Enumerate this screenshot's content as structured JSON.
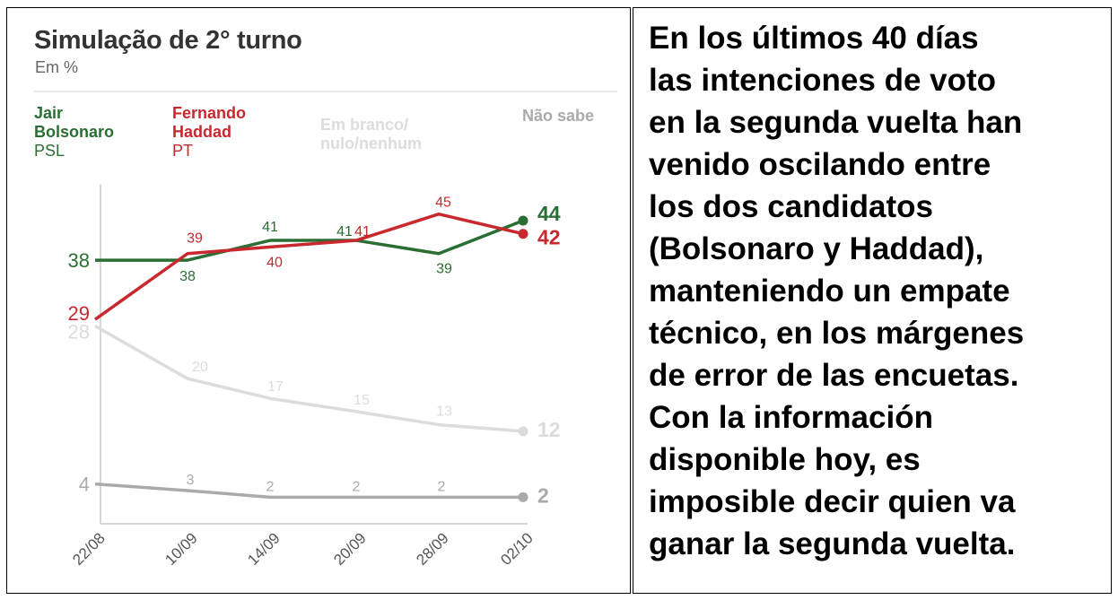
{
  "chart_data": {
    "type": "line",
    "title": "Simulação de 2° turno",
    "subtitle": "Em %",
    "categories": [
      "22/08",
      "10/09",
      "14/09",
      "20/09",
      "28/09",
      "02/10"
    ],
    "ylim": [
      0,
      50
    ],
    "grid": false,
    "legend_position": "top",
    "series": [
      {
        "name": "Jair Bolsonaro",
        "party": "PSL",
        "color": "#2a6e34",
        "values": [
          38,
          38,
          41,
          41,
          39,
          44
        ]
      },
      {
        "name": "Fernando Haddad",
        "party": "PT",
        "color": "#c8282e",
        "values": [
          29,
          39,
          40,
          41,
          45,
          42
        ]
      },
      {
        "name": "Em branco/ nulo/nenhum",
        "party": "",
        "color": "#dcdcdc",
        "values": [
          28,
          20,
          17,
          15,
          13,
          12
        ]
      },
      {
        "name": "Não sabe",
        "party": "",
        "color": "#aaaaaa",
        "values": [
          4,
          3,
          2,
          2,
          2,
          2
        ]
      }
    ]
  },
  "legend": {
    "bolsonaro": {
      "line1": "Jair",
      "line2": "Bolsonaro",
      "party": "PSL"
    },
    "haddad": {
      "line1": "Fernando",
      "line2": "Haddad",
      "party": "PT"
    },
    "branco": {
      "line1": "Em branco/",
      "line2": "nulo/nenhum"
    },
    "naosabe": {
      "line1": "Não sabe"
    }
  },
  "body_text": "En los últimos 40 días\nlas intenciones de voto\nen la segunda vuelta han\nvenido oscilando entre\nlos dos candidatos\n(Bolsonaro y Haddad),\nmanteniendo un empate\ntécnico, en los márgenes\nde error de las encuetas.\nCon la información\ndisponible hoy, es\nimposible decir quien va\nganar la segunda vuelta."
}
